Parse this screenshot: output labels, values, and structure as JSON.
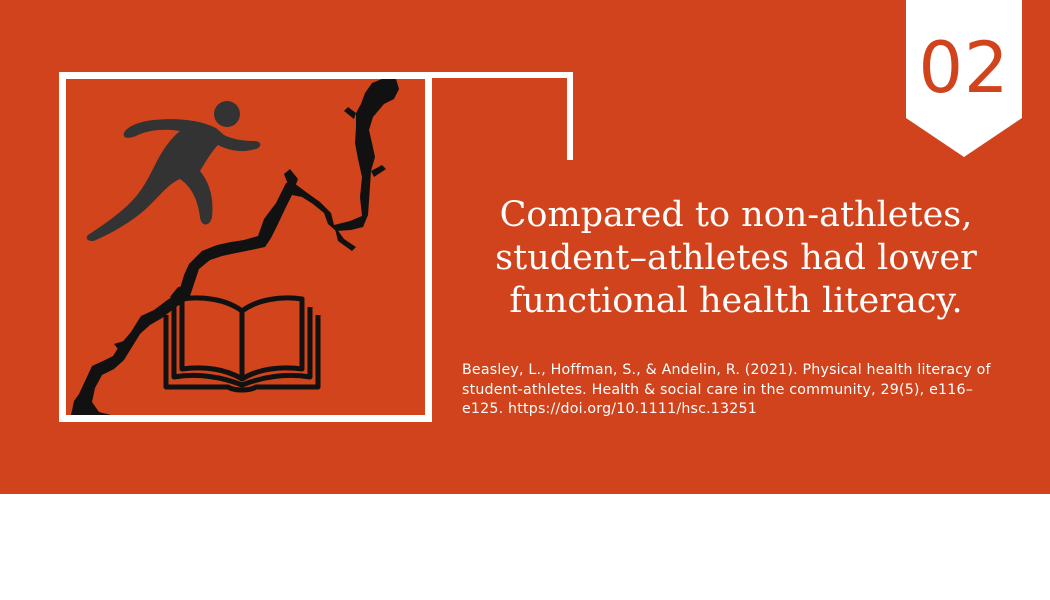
{
  "slide": {
    "number": "02",
    "headline": "Compared to non-athletes, student–athletes had lower functional health literacy.",
    "citation": "Beasley, L., Hoffman, S., & Andelin, R. (2021). Physical health literacy of student-athletes. Health & social care in the community, 29(5), e116–e125. https://doi.org/10.1111/hsc.13251"
  },
  "illustration": {
    "icons": [
      "runner-icon",
      "crack-icon",
      "open-book-icon"
    ]
  },
  "colors": {
    "background": "#d1431c",
    "accent": "#ffffff",
    "icon_dark": "#333333",
    "ink": "#111111"
  }
}
